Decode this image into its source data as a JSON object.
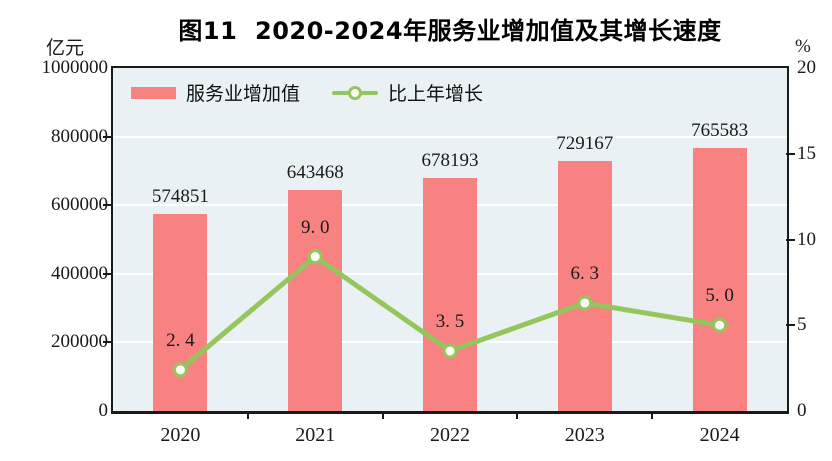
{
  "title": "图11  2020-2024年服务业增加值及其增长速度",
  "left_axis": {
    "unit": "亿元",
    "ticks": [
      "1000000",
      "800000",
      "600000",
      "400000",
      "200000",
      "0"
    ],
    "min": 0,
    "max": 1000000
  },
  "right_axis": {
    "unit": "%",
    "ticks": [
      "20",
      "15",
      "10",
      "5",
      "0"
    ],
    "min": 0,
    "max": 20
  },
  "legend": [
    {
      "label": "服务业增加值",
      "type": "bar"
    },
    {
      "label": "比上年增长",
      "type": "line"
    }
  ],
  "colors": {
    "bar": "#F88181",
    "line": "#94C65D",
    "marker_fill": "#FFFFF6",
    "plot_bg": "#EAF1F4",
    "grid": "#FFFFFF",
    "axis": "#1A1A1A",
    "text": "#1A1A1A"
  },
  "chart_data": {
    "type": "bar",
    "subtype": "bar+line combo, dual axis",
    "title": "图11  2020-2024年服务业增加值及其增长速度",
    "categories": [
      "2020",
      "2021",
      "2022",
      "2023",
      "2024"
    ],
    "series": [
      {
        "name": "服务业增加值",
        "type": "bar",
        "axis": "left",
        "unit": "亿元",
        "values": [
          574851,
          643468,
          678193,
          729167,
          765583
        ],
        "labels": [
          "574851",
          "643468",
          "678193",
          "729167",
          "765583"
        ]
      },
      {
        "name": "比上年增长",
        "type": "line",
        "axis": "right",
        "unit": "%",
        "values": [
          2.4,
          9.0,
          3.5,
          6.3,
          5.0
        ],
        "labels": [
          "2. 4",
          "9. 0",
          "3. 5",
          "6. 3",
          "5. 0"
        ]
      }
    ],
    "left_ylim": [
      0,
      1000000
    ],
    "right_ylim": [
      0,
      20
    ],
    "gridlines": {
      "orientation": "horizontal",
      "at_left_values": [
        200000,
        400000,
        600000,
        800000
      ],
      "color": "white"
    },
    "legend_position": "top-left inside plot"
  }
}
